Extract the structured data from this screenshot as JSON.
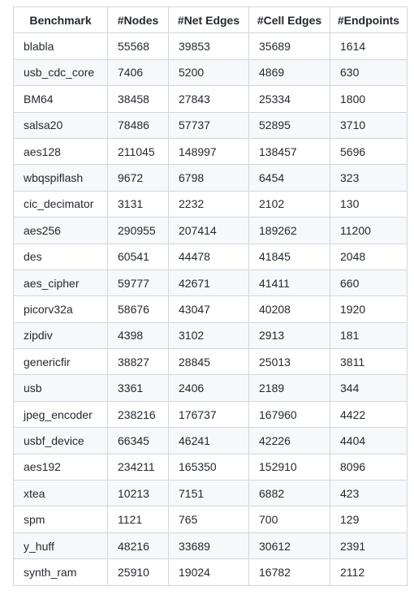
{
  "table": {
    "headers": [
      "Benchmark",
      "#Nodes",
      "#Net Edges",
      "#Cell Edges",
      "#Endpoints"
    ],
    "rows": [
      [
        "blabla",
        "55568",
        "39853",
        "35689",
        "1614"
      ],
      [
        "usb_cdc_core",
        "7406",
        "5200",
        "4869",
        "630"
      ],
      [
        "BM64",
        "38458",
        "27843",
        "25334",
        "1800"
      ],
      [
        "salsa20",
        "78486",
        "57737",
        "52895",
        "3710"
      ],
      [
        "aes128",
        "211045",
        "148997",
        "138457",
        "5696"
      ],
      [
        "wbqspiflash",
        "9672",
        "6798",
        "6454",
        "323"
      ],
      [
        "cic_decimator",
        "3131",
        "2232",
        "2102",
        "130"
      ],
      [
        "aes256",
        "290955",
        "207414",
        "189262",
        "11200"
      ],
      [
        "des",
        "60541",
        "44478",
        "41845",
        "2048"
      ],
      [
        "aes_cipher",
        "59777",
        "42671",
        "41411",
        "660"
      ],
      [
        "picorv32a",
        "58676",
        "43047",
        "40208",
        "1920"
      ],
      [
        "zipdiv",
        "4398",
        "3102",
        "2913",
        "181"
      ],
      [
        "genericfir",
        "38827",
        "28845",
        "25013",
        "3811"
      ],
      [
        "usb",
        "3361",
        "2406",
        "2189",
        "344"
      ],
      [
        "jpeg_encoder",
        "238216",
        "176737",
        "167960",
        "4422"
      ],
      [
        "usbf_device",
        "66345",
        "46241",
        "42226",
        "4404"
      ],
      [
        "aes192",
        "234211",
        "165350",
        "152910",
        "8096"
      ],
      [
        "xtea",
        "10213",
        "7151",
        "6882",
        "423"
      ],
      [
        "spm",
        "1121",
        "765",
        "700",
        "129"
      ],
      [
        "y_huff",
        "48216",
        "33689",
        "30612",
        "2391"
      ],
      [
        "synth_ram",
        "25910",
        "19024",
        "16782",
        "2112"
      ]
    ]
  }
}
